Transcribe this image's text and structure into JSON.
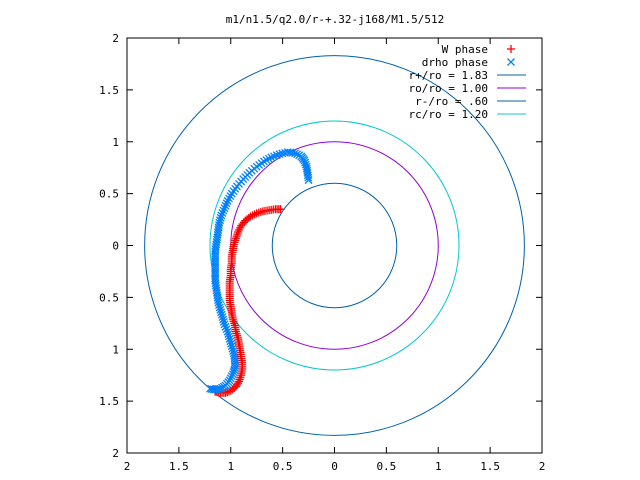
{
  "chart_data": {
    "type": "scatter",
    "title": "m1/n1.5/q2.0/r-+.32-j168/M1.5/512",
    "xlabel": "",
    "ylabel": "",
    "xlim": [
      2,
      -2
    ],
    "ylim": [
      -2,
      2
    ],
    "x_ticks": [
      2,
      1.5,
      1,
      0.5,
      0,
      0.5,
      1,
      1.5,
      2
    ],
    "y_ticks": [
      2,
      1.5,
      1,
      0.5,
      0,
      0.5,
      1,
      1.5,
      2
    ],
    "grid": false,
    "legend_position": "top-right",
    "series": [
      {
        "name": "W phase",
        "kind": "points",
        "marker": "+",
        "color": "#ff0000",
        "points": [
          [
            -1.15,
            -1.41
          ],
          [
            -1.1,
            -1.42
          ],
          [
            -1.05,
            -1.42
          ],
          [
            -1.0,
            -1.4
          ],
          [
            -0.95,
            -1.36
          ],
          [
            -0.92,
            -1.31
          ],
          [
            -0.9,
            -1.25
          ],
          [
            -0.89,
            -1.19
          ],
          [
            -0.89,
            -1.13
          ],
          [
            -0.9,
            -1.07
          ],
          [
            -0.91,
            -1.01
          ],
          [
            -0.92,
            -0.95
          ],
          [
            -0.93,
            -0.89
          ],
          [
            -0.95,
            -0.83
          ],
          [
            -0.96,
            -0.77
          ],
          [
            -0.98,
            -0.71
          ],
          [
            -0.99,
            -0.65
          ],
          [
            -1.0,
            -0.59
          ],
          [
            -1.01,
            -0.53
          ],
          [
            -1.01,
            -0.47
          ],
          [
            -1.01,
            -0.41
          ],
          [
            -1.01,
            -0.35
          ],
          [
            -1.0,
            -0.29
          ],
          [
            -1.0,
            -0.23
          ],
          [
            -0.99,
            -0.17
          ],
          [
            -0.99,
            -0.11
          ],
          [
            -0.98,
            -0.05
          ],
          [
            -0.97,
            0.01
          ],
          [
            -0.95,
            0.07
          ],
          [
            -0.93,
            0.13
          ],
          [
            -0.9,
            0.19
          ],
          [
            -0.86,
            0.24
          ],
          [
            -0.81,
            0.28
          ],
          [
            -0.75,
            0.31
          ],
          [
            -0.69,
            0.33
          ],
          [
            -0.63,
            0.34
          ],
          [
            -0.57,
            0.35
          ],
          [
            -0.52,
            0.35
          ]
        ]
      },
      {
        "name": "drho phase",
        "kind": "points",
        "marker": "x",
        "color": "#0080ff",
        "points": [
          [
            -1.2,
            -1.38
          ],
          [
            -1.15,
            -1.39
          ],
          [
            -1.1,
            -1.38
          ],
          [
            -1.05,
            -1.35
          ],
          [
            -1.01,
            -1.3
          ],
          [
            -0.98,
            -1.24
          ],
          [
            -0.96,
            -1.18
          ],
          [
            -0.96,
            -1.11
          ],
          [
            -0.97,
            -1.04
          ],
          [
            -0.99,
            -0.97
          ],
          [
            -1.01,
            -0.9
          ],
          [
            -1.03,
            -0.83
          ],
          [
            -1.06,
            -0.76
          ],
          [
            -1.08,
            -0.69
          ],
          [
            -1.1,
            -0.62
          ],
          [
            -1.12,
            -0.55
          ],
          [
            -1.13,
            -0.48
          ],
          [
            -1.14,
            -0.41
          ],
          [
            -1.15,
            -0.34
          ],
          [
            -1.15,
            -0.27
          ],
          [
            -1.15,
            -0.2
          ],
          [
            -1.15,
            -0.13
          ],
          [
            -1.15,
            -0.06
          ],
          [
            -1.14,
            0.01
          ],
          [
            -1.13,
            0.08
          ],
          [
            -1.12,
            0.15
          ],
          [
            -1.11,
            0.22
          ],
          [
            -1.09,
            0.29
          ],
          [
            -1.06,
            0.36
          ],
          [
            -1.03,
            0.43
          ],
          [
            -0.99,
            0.5
          ],
          [
            -0.94,
            0.57
          ],
          [
            -0.88,
            0.64
          ],
          [
            -0.82,
            0.7
          ],
          [
            -0.75,
            0.76
          ],
          [
            -0.68,
            0.81
          ],
          [
            -0.61,
            0.85
          ],
          [
            -0.53,
            0.88
          ],
          [
            -0.45,
            0.9
          ],
          [
            -0.38,
            0.89
          ],
          [
            -0.32,
            0.86
          ],
          [
            -0.29,
            0.82
          ],
          [
            -0.27,
            0.76
          ],
          [
            -0.26,
            0.7
          ],
          [
            -0.25,
            0.63
          ]
        ]
      },
      {
        "name": "r+/ro = 1.83",
        "kind": "circle",
        "radius": 1.83,
        "color": "#0060ad"
      },
      {
        "name": "ro/ro = 1.00",
        "kind": "circle",
        "radius": 1.0,
        "color": "#9400d3"
      },
      {
        "name": "r-/ro = .60",
        "kind": "circle",
        "radius": 0.6,
        "color": "#0060ad"
      },
      {
        "name": "rc/ro = 1.20",
        "kind": "circle",
        "radius": 1.2,
        "color": "#00c8d0"
      }
    ]
  }
}
